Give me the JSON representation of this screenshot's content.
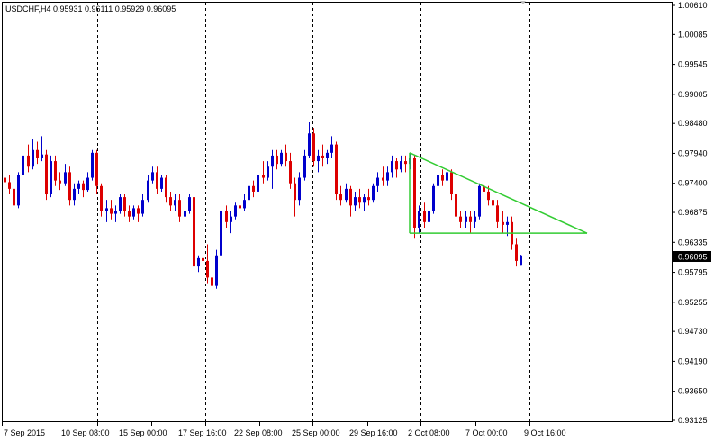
{
  "window": {
    "symbol_line": "USDCHF,H4  0.95931 0.96111 0.95929 0.96095"
  },
  "colors": {
    "background": "#ffffff",
    "bull": "#0000cc",
    "bear": "#dd0000",
    "trendline": "#33cc33",
    "grid": "#000000",
    "price_line": "#c0c0c0",
    "current_label_bg": "#000000"
  },
  "chart_data": {
    "type": "candlestick",
    "symbol": "USDCHF",
    "timeframe": "H4",
    "ohlc_header": {
      "open": 0.95931,
      "high": 0.96111,
      "low": 0.95929,
      "close": 0.96095
    },
    "current_price": "0.96095",
    "ylim": [
      0.931,
      1.007
    ],
    "y_ticks": [
      "1.00610",
      "1.00085",
      "0.99545",
      "0.99005",
      "0.98480",
      "0.97940",
      "0.97400",
      "0.96875",
      "0.96335",
      "0.95795",
      "0.95255",
      "0.94730",
      "0.94190",
      "0.93650",
      "0.93125"
    ],
    "x_ticks": [
      "7 Sep 2015",
      "10 Sep 08:00",
      "15 Sep 00:00",
      "17 Sep 16:00",
      "22 Sep 08:00",
      "25 Sep 00:00",
      "29 Sep 16:00",
      "2 Oct 08:00",
      "7 Oct 00:00",
      "9 Oct 16:00"
    ],
    "candles": [
      [
        0.975,
        0.977,
        0.9735,
        0.9742
      ],
      [
        0.9742,
        0.9755,
        0.972,
        0.973
      ],
      [
        0.973,
        0.974,
        0.969,
        0.97
      ],
      [
        0.97,
        0.976,
        0.9695,
        0.9755
      ],
      [
        0.9755,
        0.98,
        0.974,
        0.979
      ],
      [
        0.979,
        0.981,
        0.976,
        0.977
      ],
      [
        0.977,
        0.982,
        0.9765,
        0.98
      ],
      [
        0.98,
        0.9815,
        0.9775,
        0.9785
      ],
      [
        0.9785,
        0.9825,
        0.978,
        0.9792
      ],
      [
        0.9792,
        0.98,
        0.971,
        0.972
      ],
      [
        0.972,
        0.979,
        0.9715,
        0.978
      ],
      [
        0.978,
        0.979,
        0.9735,
        0.9745
      ],
      [
        0.9745,
        0.976,
        0.9728,
        0.974
      ],
      [
        0.974,
        0.9775,
        0.9735,
        0.976
      ],
      [
        0.976,
        0.977,
        0.97,
        0.971
      ],
      [
        0.971,
        0.974,
        0.97,
        0.973
      ],
      [
        0.973,
        0.9745,
        0.972,
        0.974
      ],
      [
        0.974,
        0.9745,
        0.9715,
        0.9728
      ],
      [
        0.9728,
        0.976,
        0.9725,
        0.975
      ],
      [
        0.975,
        0.98,
        0.9745,
        0.9795
      ],
      [
        0.9795,
        0.98,
        0.972,
        0.9735
      ],
      [
        0.9735,
        0.974,
        0.968,
        0.969
      ],
      [
        0.969,
        0.971,
        0.967,
        0.9695
      ],
      [
        0.9695,
        0.971,
        0.9675,
        0.9685
      ],
      [
        0.9685,
        0.97,
        0.967,
        0.969
      ],
      [
        0.969,
        0.972,
        0.9685,
        0.9715
      ],
      [
        0.9715,
        0.972,
        0.968,
        0.969
      ],
      [
        0.969,
        0.97,
        0.967,
        0.968
      ],
      [
        0.968,
        0.97,
        0.9675,
        0.9695
      ],
      [
        0.9695,
        0.97,
        0.967,
        0.9685
      ],
      [
        0.9685,
        0.972,
        0.968,
        0.971
      ],
      [
        0.971,
        0.9755,
        0.9705,
        0.9745
      ],
      [
        0.9745,
        0.977,
        0.974,
        0.976
      ],
      [
        0.976,
        0.977,
        0.972,
        0.973
      ],
      [
        0.973,
        0.9755,
        0.9725,
        0.975
      ],
      [
        0.975,
        0.9755,
        0.9705,
        0.9715
      ],
      [
        0.9715,
        0.9725,
        0.969,
        0.97
      ],
      [
        0.97,
        0.972,
        0.969,
        0.971
      ],
      [
        0.971,
        0.972,
        0.967,
        0.968
      ],
      [
        0.968,
        0.97,
        0.967,
        0.969
      ],
      [
        0.969,
        0.972,
        0.9685,
        0.9715
      ],
      [
        0.9715,
        0.972,
        0.958,
        0.959
      ],
      [
        0.959,
        0.961,
        0.958,
        0.9605
      ],
      [
        0.9605,
        0.9615,
        0.959,
        0.96
      ],
      [
        0.96,
        0.963,
        0.956,
        0.957
      ],
      [
        0.957,
        0.958,
        0.953,
        0.9555
      ],
      [
        0.9555,
        0.962,
        0.955,
        0.961
      ],
      [
        0.961,
        0.9695,
        0.9605,
        0.969
      ],
      [
        0.969,
        0.97,
        0.966,
        0.967
      ],
      [
        0.967,
        0.969,
        0.965,
        0.968
      ],
      [
        0.968,
        0.9705,
        0.9675,
        0.97
      ],
      [
        0.97,
        0.9715,
        0.969,
        0.9695
      ],
      [
        0.9695,
        0.972,
        0.969,
        0.971
      ],
      [
        0.971,
        0.974,
        0.9705,
        0.9735
      ],
      [
        0.9735,
        0.9745,
        0.9715,
        0.9725
      ],
      [
        0.9725,
        0.976,
        0.972,
        0.9755
      ],
      [
        0.9755,
        0.978,
        0.974,
        0.975
      ],
      [
        0.975,
        0.978,
        0.9745,
        0.977
      ],
      [
        0.977,
        0.98,
        0.973,
        0.979
      ],
      [
        0.979,
        0.98,
        0.9765,
        0.9775
      ],
      [
        0.9775,
        0.98,
        0.977,
        0.9795
      ],
      [
        0.9795,
        0.981,
        0.977,
        0.978
      ],
      [
        0.978,
        0.9795,
        0.973,
        0.974
      ],
      [
        0.974,
        0.975,
        0.968,
        0.971
      ],
      [
        0.971,
        0.976,
        0.97,
        0.975
      ],
      [
        0.975,
        0.98,
        0.9745,
        0.979
      ],
      [
        0.979,
        0.985,
        0.9785,
        0.983
      ],
      [
        0.983,
        0.984,
        0.977,
        0.978
      ],
      [
        0.978,
        0.98,
        0.976,
        0.979
      ],
      [
        0.979,
        0.981,
        0.977,
        0.9785
      ],
      [
        0.9785,
        0.98,
        0.9775,
        0.9795
      ],
      [
        0.9795,
        0.9825,
        0.9785,
        0.981
      ],
      [
        0.981,
        0.9815,
        0.971,
        0.972
      ],
      [
        0.972,
        0.9735,
        0.97,
        0.971
      ],
      [
        0.971,
        0.974,
        0.9705,
        0.973
      ],
      [
        0.973,
        0.9735,
        0.968,
        0.97
      ],
      [
        0.97,
        0.9725,
        0.969,
        0.9715
      ],
      [
        0.9715,
        0.973,
        0.9695,
        0.9705
      ],
      [
        0.9705,
        0.972,
        0.969,
        0.9715
      ],
      [
        0.9715,
        0.973,
        0.97,
        0.971
      ],
      [
        0.971,
        0.974,
        0.9705,
        0.9735
      ],
      [
        0.9735,
        0.976,
        0.9725,
        0.975
      ],
      [
        0.975,
        0.977,
        0.9735,
        0.9745
      ],
      [
        0.9745,
        0.977,
        0.9735,
        0.976
      ],
      [
        0.976,
        0.979,
        0.975,
        0.978
      ],
      [
        0.978,
        0.9785,
        0.975,
        0.9765
      ],
      [
        0.9765,
        0.979,
        0.976,
        0.978
      ],
      [
        0.978,
        0.979,
        0.976,
        0.9775
      ],
      [
        0.9775,
        0.9795,
        0.9765,
        0.9785
      ],
      [
        0.9785,
        0.979,
        0.964,
        0.966
      ],
      [
        0.966,
        0.97,
        0.965,
        0.969
      ],
      [
        0.969,
        0.9705,
        0.966,
        0.967
      ],
      [
        0.967,
        0.97,
        0.966,
        0.969
      ],
      [
        0.969,
        0.974,
        0.9685,
        0.9735
      ],
      [
        0.9735,
        0.9765,
        0.9725,
        0.9755
      ],
      [
        0.9755,
        0.9765,
        0.9735,
        0.9745
      ],
      [
        0.9745,
        0.977,
        0.974,
        0.976
      ],
      [
        0.976,
        0.9765,
        0.971,
        0.972
      ],
      [
        0.972,
        0.973,
        0.967,
        0.968
      ],
      [
        0.968,
        0.969,
        0.966,
        0.967
      ],
      [
        0.967,
        0.969,
        0.966,
        0.968
      ],
      [
        0.968,
        0.969,
        0.965,
        0.967
      ],
      [
        0.967,
        0.969,
        0.966,
        0.968
      ],
      [
        0.968,
        0.974,
        0.9675,
        0.9735
      ],
      [
        0.9735,
        0.974,
        0.9715,
        0.9725
      ],
      [
        0.9725,
        0.9735,
        0.97,
        0.971
      ],
      [
        0.971,
        0.973,
        0.969,
        0.97
      ],
      [
        0.97,
        0.971,
        0.966,
        0.967
      ],
      [
        0.967,
        0.969,
        0.965,
        0.9665
      ],
      [
        0.9665,
        0.968,
        0.9645,
        0.967
      ],
      [
        0.967,
        0.968,
        0.962,
        0.963
      ],
      [
        0.963,
        0.964,
        0.959,
        0.96
      ],
      [
        0.9593,
        0.9611,
        0.9593,
        0.961
      ]
    ],
    "trendlines": [
      {
        "from": [
          0,
          0.9795
        ],
        "to": [
          1,
          0.965
        ]
      },
      {
        "from": [
          0,
          0.965
        ],
        "to": [
          1,
          0.965
        ]
      }
    ]
  }
}
